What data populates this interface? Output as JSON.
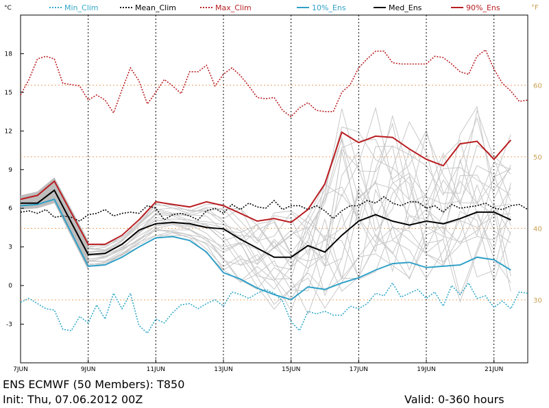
{
  "chart_data": {
    "type": "line",
    "y_unit_left": "°C",
    "y_unit_right": "°F",
    "ylim": [
      -6,
      21
    ],
    "yticks_left": [
      "-3",
      "0",
      "3",
      "6",
      "9",
      "12",
      "15",
      "18"
    ],
    "yticks_left_values": [
      -3,
      0,
      3,
      6,
      9,
      12,
      15,
      18
    ],
    "yticks_right": [
      "30",
      "40",
      "50",
      "60"
    ],
    "yticks_right_values_c": [
      -1.111,
      4.444,
      10.0,
      15.556
    ],
    "xlim": [
      0,
      360
    ],
    "xticks": [
      "7JUN",
      "9JUN",
      "11JUN",
      "13JUN",
      "15JUN",
      "17JUN",
      "19JUN",
      "21JUN"
    ],
    "xticks_hours": [
      0,
      48,
      96,
      144,
      192,
      240,
      288,
      336
    ],
    "grid": true,
    "series": [
      {
        "name": "Min_Clim",
        "color": "#30a8c8",
        "style": "dotted",
        "x": [
          0,
          6,
          12,
          18,
          24,
          30,
          36,
          42,
          48,
          54,
          60,
          66,
          72,
          78,
          84,
          90,
          96,
          102,
          108,
          114,
          120,
          126,
          132,
          138,
          144,
          150,
          156,
          162,
          168,
          174,
          180,
          186,
          192,
          198,
          204,
          210,
          216,
          222,
          228,
          234,
          240,
          246,
          252,
          258,
          264,
          270,
          276,
          282,
          288,
          294,
          300,
          306,
          312,
          318,
          324,
          330,
          336,
          342,
          348,
          354,
          360
        ],
        "y": [
          -1.3,
          -1.0,
          -1.4,
          -1.8,
          -1.9,
          -3.4,
          -3.5,
          -2.4,
          -2.9,
          -1.5,
          -2.6,
          -0.6,
          -1.8,
          -0.6,
          -3.1,
          -3.7,
          -2.6,
          -2.9,
          -2.1,
          -1.5,
          -1.4,
          -1.8,
          -1.4,
          -1.1,
          -1.6,
          -0.5,
          -0.7,
          -1.0,
          -0.6,
          -0.3,
          -0.6,
          -1.2,
          -2.8,
          -3.5,
          -2.0,
          -2.2,
          -2.0,
          -2.3,
          -2.3,
          -1.6,
          -1.8,
          -1.4,
          -0.6,
          -0.8,
          0.2,
          -0.9,
          -0.6,
          -0.3,
          -1.0,
          -0.5,
          -1.6,
          0.0,
          -0.7,
          0.2,
          -1.0,
          -0.8,
          -1.7,
          -1.2,
          -1.8,
          -0.5,
          -0.6
        ]
      },
      {
        "name": "Mean_Clim",
        "color": "#000000",
        "style": "dotted",
        "x": [
          0,
          6,
          12,
          18,
          24,
          30,
          36,
          42,
          48,
          54,
          60,
          66,
          72,
          78,
          84,
          90,
          96,
          102,
          108,
          114,
          120,
          126,
          132,
          138,
          144,
          150,
          156,
          162,
          168,
          174,
          180,
          186,
          192,
          198,
          204,
          210,
          216,
          222,
          228,
          234,
          240,
          246,
          252,
          258,
          264,
          270,
          276,
          282,
          288,
          294,
          300,
          306,
          312,
          318,
          324,
          330,
          336,
          342,
          348,
          354,
          360
        ],
        "y": [
          5.7,
          5.8,
          5.6,
          5.9,
          5.3,
          5.4,
          5.3,
          5.0,
          5.5,
          5.6,
          5.9,
          5.4,
          5.6,
          5.7,
          5.6,
          6.2,
          6.0,
          5.1,
          5.5,
          5.6,
          5.4,
          5.1,
          5.8,
          6.0,
          5.6,
          6.3,
          5.9,
          6.4,
          6.1,
          6.0,
          6.6,
          5.9,
          6.2,
          6.2,
          5.9,
          6.2,
          5.8,
          5.2,
          5.8,
          6.2,
          6.2,
          6.6,
          6.4,
          6.9,
          6.4,
          6.2,
          6.5,
          6.5,
          6.0,
          6.2,
          5.7,
          6.3,
          6.0,
          6.1,
          6.2,
          6.4,
          6.0,
          5.9,
          6.2,
          6.3,
          5.9
        ]
      },
      {
        "name": "Max_Clim",
        "color": "#b81c20",
        "style": "dotted",
        "x": [
          0,
          6,
          12,
          18,
          24,
          30,
          36,
          42,
          48,
          54,
          60,
          66,
          72,
          78,
          84,
          90,
          96,
          102,
          108,
          114,
          120,
          126,
          132,
          138,
          144,
          150,
          156,
          162,
          168,
          174,
          180,
          186,
          192,
          198,
          204,
          210,
          216,
          222,
          228,
          234,
          240,
          246,
          252,
          258,
          264,
          270,
          276,
          282,
          288,
          294,
          300,
          306,
          312,
          318,
          324,
          330,
          336,
          342,
          348,
          354,
          360
        ],
        "y": [
          14.8,
          16.0,
          17.6,
          17.8,
          17.6,
          15.7,
          15.6,
          15.5,
          14.4,
          14.8,
          14.4,
          13.4,
          15.2,
          16.9,
          15.9,
          14.1,
          15.0,
          16.0,
          15.5,
          14.9,
          16.6,
          16.6,
          17.1,
          15.5,
          16.4,
          16.9,
          16.3,
          15.5,
          14.6,
          14.5,
          14.6,
          13.6,
          13.1,
          13.8,
          14.2,
          13.6,
          13.5,
          13.5,
          15.0,
          15.6,
          16.9,
          17.6,
          18.2,
          18.2,
          17.3,
          17.2,
          17.2,
          17.2,
          17.2,
          17.8,
          17.7,
          17.2,
          16.6,
          16.4,
          17.8,
          18.3,
          16.8,
          15.7,
          15.1,
          14.3,
          14.4
        ]
      },
      {
        "name": "10%_Ens",
        "color": "#30a0c8",
        "style": "solid",
        "x": [
          0,
          12,
          24,
          48,
          60,
          72,
          84,
          96,
          108,
          120,
          132,
          144,
          156,
          168,
          180,
          192,
          204,
          216,
          228,
          240,
          252,
          264,
          276,
          288,
          300,
          312,
          324,
          336,
          348
        ],
        "y": [
          6.2,
          6.3,
          6.7,
          1.5,
          1.6,
          2.2,
          3.0,
          3.7,
          3.8,
          3.5,
          2.6,
          1.0,
          0.5,
          -0.2,
          -0.7,
          -1.1,
          -0.1,
          -0.3,
          0.2,
          0.6,
          1.2,
          1.7,
          1.8,
          1.4,
          1.5,
          1.6,
          2.2,
          2.0,
          1.2
        ]
      },
      {
        "name": "Med_Ens",
        "color": "#000000",
        "style": "solid",
        "x": [
          0,
          12,
          24,
          48,
          60,
          72,
          84,
          96,
          108,
          120,
          132,
          144,
          156,
          168,
          180,
          192,
          204,
          216,
          228,
          240,
          252,
          264,
          276,
          288,
          300,
          312,
          324,
          336,
          348
        ],
        "y": [
          6.4,
          6.4,
          7.4,
          2.4,
          2.5,
          3.2,
          4.3,
          4.8,
          4.9,
          4.8,
          4.5,
          4.4,
          3.6,
          2.9,
          2.2,
          2.2,
          3.1,
          2.6,
          3.9,
          5.0,
          5.5,
          5.0,
          4.7,
          5.0,
          4.8,
          5.2,
          5.7,
          5.7,
          5.1
        ]
      },
      {
        "name": "90%_Ens",
        "color": "#b81c20",
        "style": "solid",
        "x": [
          0,
          12,
          24,
          48,
          60,
          72,
          84,
          96,
          108,
          120,
          132,
          144,
          156,
          168,
          180,
          192,
          204,
          216,
          228,
          240,
          252,
          264,
          276,
          288,
          300,
          312,
          324,
          336,
          348
        ],
        "y": [
          6.7,
          7.0,
          8.1,
          3.2,
          3.2,
          3.9,
          5.1,
          6.5,
          6.3,
          6.1,
          6.5,
          6.2,
          5.6,
          5.0,
          5.2,
          4.9,
          5.9,
          7.9,
          11.9,
          11.1,
          11.6,
          11.5,
          10.6,
          9.8,
          9.3,
          11.0,
          11.2,
          9.8,
          11.3
        ]
      }
    ]
  },
  "legend": {
    "items": [
      {
        "label": "Min_Clim",
        "color": "#30a8c8",
        "dash": "2,2"
      },
      {
        "label": "Mean_Clim",
        "color": "#000000",
        "dash": "2,2"
      },
      {
        "label": "Max_Clim",
        "color": "#b81c20",
        "dash": "2,2"
      },
      {
        "label": "10%_Ens",
        "color": "#30a0c8",
        "dash": ""
      },
      {
        "label": "Med_Ens",
        "color": "#000000",
        "dash": ""
      },
      {
        "label": "90%_Ens",
        "color": "#b81c20",
        "dash": ""
      }
    ]
  },
  "footer": {
    "title": "ENS ECMWF (50 Members): T850",
    "init": "Init: Thu, 07.06.2012 00Z",
    "valid": "Valid: 0-360 hours"
  },
  "colors": {
    "spread_fill": "#bdbdbd",
    "member_lines": "#c8c8c8",
    "fahrenheit_guides": "#e8a060",
    "grid": "#000000"
  }
}
